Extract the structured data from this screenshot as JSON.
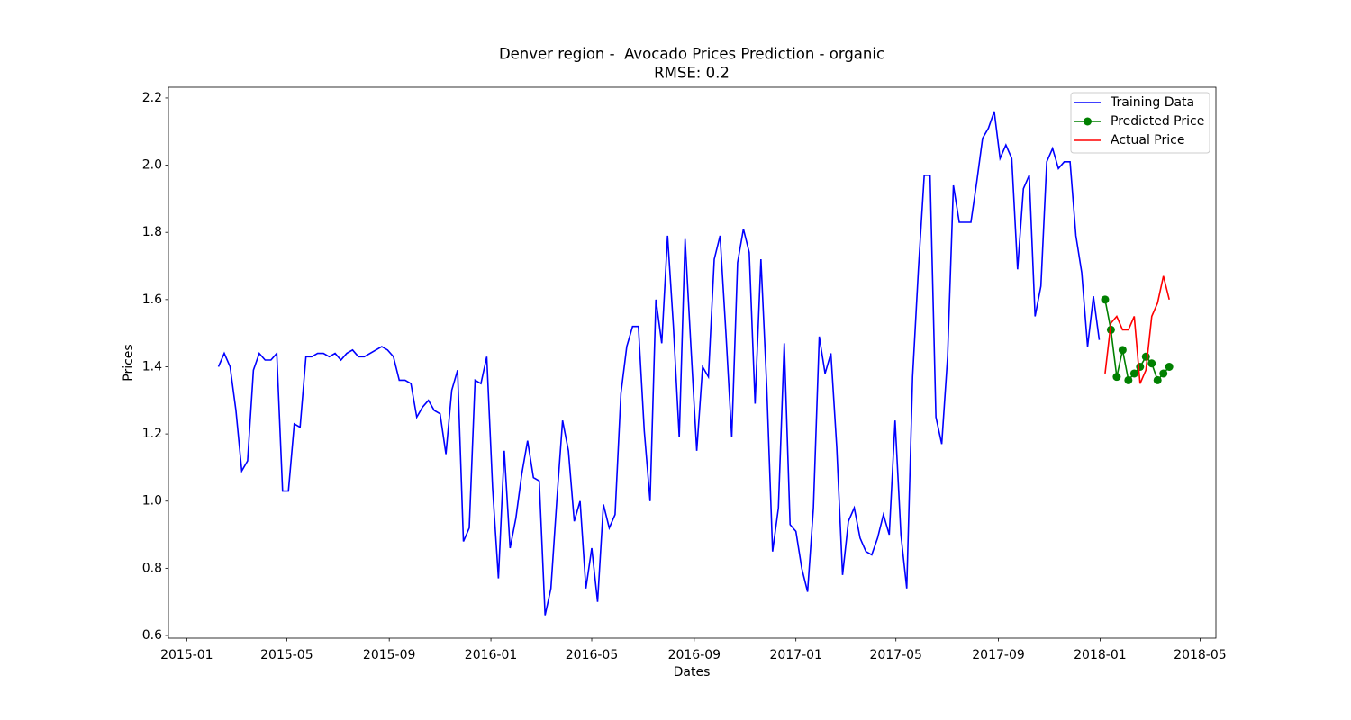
{
  "chart_data": {
    "type": "line",
    "title": "Denver region -  Avocado Prices Prediction - organic",
    "subtitle": "RMSE: 0.2",
    "x_label": "Dates",
    "y_label": "Prices",
    "xlim": [
      "2014-12-10",
      "2018-05-20"
    ],
    "xticks": [
      "2015-01",
      "2015-05",
      "2015-09",
      "2016-01",
      "2016-05",
      "2016-09",
      "2017-01",
      "2017-05",
      "2017-09",
      "2018-01",
      "2018-05"
    ],
    "ylim": [
      0.592,
      2.232
    ],
    "yticks": [
      0.6,
      0.8,
      {
        "value": 1,
        "label": "1.0"
      },
      1.2,
      1.4,
      1.6,
      1.8,
      {
        "value": 2,
        "label": "2.0"
      },
      2.2
    ],
    "grid": false,
    "legend": "upper right",
    "series": [
      {
        "name": "Training Data",
        "color": "#0000ff",
        "x": [
          "2015-02-08",
          "2015-02-15",
          "2015-02-22",
          "2015-03-01",
          "2015-03-08",
          "2015-03-15",
          "2015-03-22",
          "2015-03-29",
          "2015-04-05",
          "2015-04-12",
          "2015-04-19",
          "2015-04-26",
          "2015-05-03",
          "2015-05-10",
          "2015-05-17",
          "2015-05-24",
          "2015-05-31",
          "2015-06-07",
          "2015-06-14",
          "2015-06-21",
          "2015-06-28",
          "2015-07-05",
          "2015-07-12",
          "2015-07-19",
          "2015-07-26",
          "2015-08-02",
          "2015-08-09",
          "2015-08-16",
          "2015-08-23",
          "2015-08-30",
          "2015-09-06",
          "2015-09-13",
          "2015-09-20",
          "2015-09-27",
          "2015-10-04",
          "2015-10-11",
          "2015-10-18",
          "2015-10-25",
          "2015-11-01",
          "2015-11-08",
          "2015-11-15",
          "2015-11-22",
          "2015-11-29",
          "2015-12-06",
          "2015-12-13",
          "2015-12-20",
          "2015-12-27",
          "2016-01-03",
          "2016-01-10",
          "2016-01-17",
          "2016-01-24",
          "2016-01-31",
          "2016-02-07",
          "2016-02-14",
          "2016-02-21",
          "2016-02-28",
          "2016-03-06",
          "2016-03-13",
          "2016-03-20",
          "2016-03-27",
          "2016-04-03",
          "2016-04-10",
          "2016-04-17",
          "2016-04-24",
          "2016-05-01",
          "2016-05-08",
          "2016-05-15",
          "2016-05-22",
          "2016-05-29",
          "2016-06-05",
          "2016-06-12",
          "2016-06-19",
          "2016-06-26",
          "2016-07-03",
          "2016-07-10",
          "2016-07-17",
          "2016-07-24",
          "2016-07-31",
          "2016-08-07",
          "2016-08-14",
          "2016-08-21",
          "2016-08-28",
          "2016-09-04",
          "2016-09-11",
          "2016-09-18",
          "2016-09-25",
          "2016-10-02",
          "2016-10-09",
          "2016-10-16",
          "2016-10-23",
          "2016-10-30",
          "2016-11-06",
          "2016-11-13",
          "2016-11-20",
          "2016-11-27",
          "2016-12-04",
          "2016-12-11",
          "2016-12-18",
          "2016-12-25",
          "2017-01-01",
          "2017-01-08",
          "2017-01-15",
          "2017-01-22",
          "2017-01-29",
          "2017-02-05",
          "2017-02-12",
          "2017-02-19",
          "2017-02-26",
          "2017-03-05",
          "2017-03-12",
          "2017-03-19",
          "2017-03-26",
          "2017-04-02",
          "2017-04-09",
          "2017-04-16",
          "2017-04-23",
          "2017-04-30",
          "2017-05-07",
          "2017-05-14",
          "2017-05-21",
          "2017-05-28",
          "2017-06-04",
          "2017-06-11",
          "2017-06-18",
          "2017-06-25",
          "2017-07-02",
          "2017-07-09",
          "2017-07-16",
          "2017-07-23",
          "2017-07-30",
          "2017-08-06",
          "2017-08-13",
          "2017-08-20",
          "2017-08-27",
          "2017-09-03",
          "2017-09-10",
          "2017-09-17",
          "2017-09-24",
          "2017-10-01",
          "2017-10-08",
          "2017-10-15",
          "2017-10-22",
          "2017-10-29",
          "2017-11-05",
          "2017-11-12",
          "2017-11-19",
          "2017-11-26",
          "2017-12-03",
          "2017-12-10",
          "2017-12-17",
          "2017-12-24",
          "2017-12-31"
        ],
        "values": [
          1.4,
          1.44,
          1.4,
          1.27,
          1.09,
          1.12,
          1.39,
          1.44,
          1.42,
          1.42,
          1.44,
          1.03,
          1.03,
          1.23,
          1.22,
          1.43,
          1.43,
          1.44,
          1.44,
          1.43,
          1.44,
          1.42,
          1.44,
          1.45,
          1.43,
          1.43,
          1.44,
          1.45,
          1.46,
          1.45,
          1.43,
          1.36,
          1.36,
          1.35,
          1.25,
          1.28,
          1.3,
          1.27,
          1.26,
          1.14,
          1.33,
          1.39,
          0.88,
          0.92,
          1.36,
          1.35,
          1.43,
          1.04,
          0.77,
          1.15,
          0.86,
          0.95,
          1.08,
          1.18,
          1.07,
          1.06,
          0.66,
          0.74,
          1.0,
          1.24,
          1.15,
          0.94,
          1.0,
          0.74,
          0.86,
          0.7,
          0.99,
          0.92,
          0.96,
          1.32,
          1.46,
          1.52,
          1.52,
          1.21,
          1.0,
          1.6,
          1.47,
          1.79,
          1.52,
          1.19,
          1.78,
          1.46,
          1.15,
          1.4,
          1.37,
          1.72,
          1.79,
          1.5,
          1.19,
          1.71,
          1.81,
          1.74,
          1.29,
          1.72,
          1.34,
          0.85,
          0.98,
          1.47,
          0.93,
          0.91,
          0.8,
          0.73,
          0.98,
          1.49,
          1.38,
          1.44,
          1.16,
          0.78,
          0.94,
          0.98,
          0.89,
          0.85,
          0.84,
          0.89,
          0.96,
          0.9,
          1.24,
          0.9,
          0.74,
          1.37,
          1.69,
          1.97,
          1.97,
          1.25,
          1.17,
          1.43,
          1.94,
          1.83,
          1.83,
          1.83,
          1.95,
          2.08,
          2.11,
          2.16,
          2.02,
          2.06,
          2.02,
          1.69,
          1.93,
          1.97,
          1.55,
          1.64,
          2.01,
          2.05,
          1.99,
          2.01,
          2.01,
          1.79,
          1.68,
          1.46,
          1.61,
          1.48
        ]
      },
      {
        "name": "Predicted Price",
        "color": "#008000",
        "marker": "circle",
        "x": [
          "2018-01-07",
          "2018-01-14",
          "2018-01-21",
          "2018-01-28",
          "2018-02-04",
          "2018-02-11",
          "2018-02-18",
          "2018-02-25",
          "2018-03-04",
          "2018-03-11",
          "2018-03-18",
          "2018-03-25"
        ],
        "values": [
          1.6,
          1.51,
          1.37,
          1.45,
          1.36,
          1.38,
          1.4,
          1.43,
          1.41,
          1.36,
          1.38,
          1.4
        ]
      },
      {
        "name": "Actual Price",
        "color": "#ff0000",
        "x": [
          "2018-01-07",
          "2018-01-14",
          "2018-01-21",
          "2018-01-28",
          "2018-02-04",
          "2018-02-11",
          "2018-02-18",
          "2018-02-25",
          "2018-03-04",
          "2018-03-11",
          "2018-03-18",
          "2018-03-25"
        ],
        "values": [
          1.38,
          1.53,
          1.55,
          1.51,
          1.51,
          1.55,
          1.35,
          1.39,
          1.55,
          1.59,
          1.67,
          1.6
        ]
      }
    ]
  }
}
